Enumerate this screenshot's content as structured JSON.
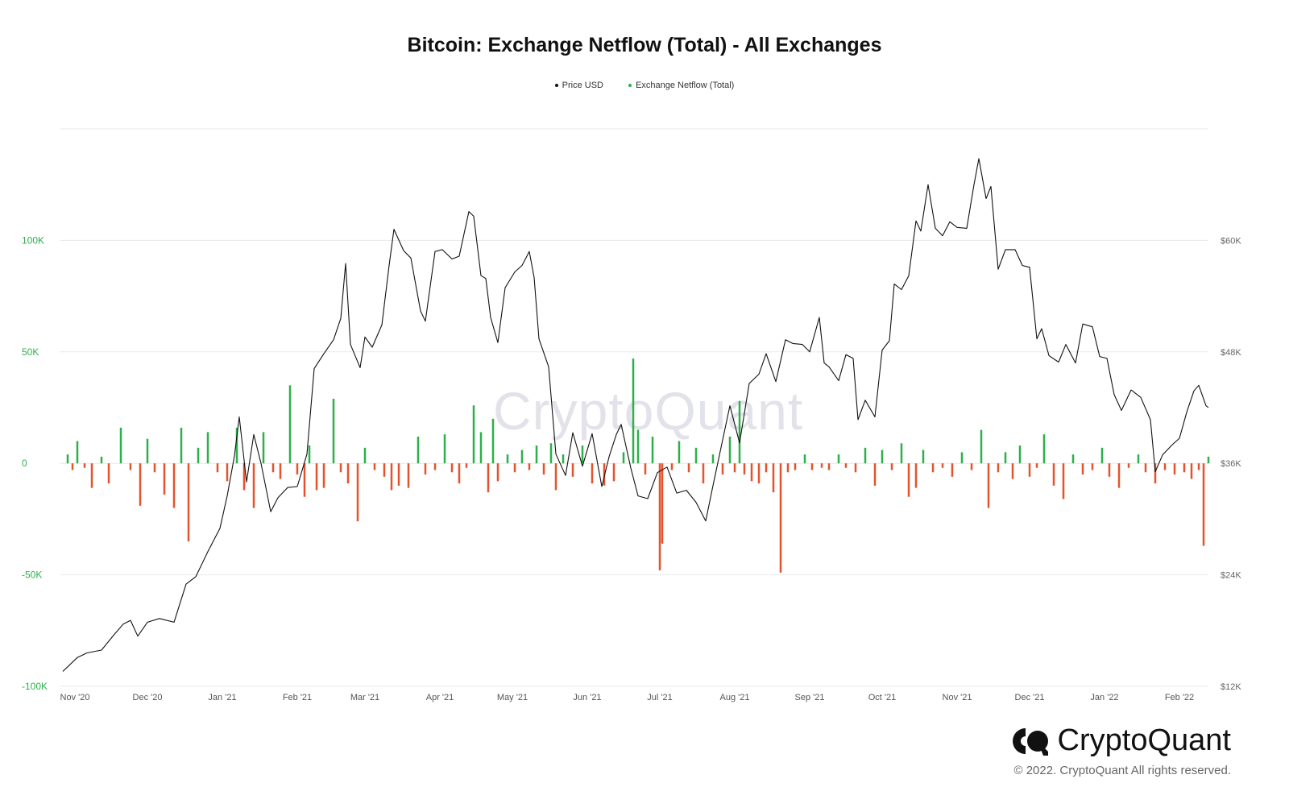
{
  "brand": {
    "name": "CryptoQuant",
    "copyright": "© 2022. CryptoQuant All rights reserved.",
    "watermark": "CryptoQuant"
  },
  "colors": {
    "price": "#111111",
    "inflow": "#2db04a",
    "outflow": "#e4532c",
    "left_axis": "#2db04a",
    "right_axis": "#666666",
    "grid": "#e8e8e8"
  },
  "chart_data": {
    "type": "bar",
    "title": "Bitcoin: Exchange Netflow (Total) - All Exchanges",
    "legend": [
      {
        "name": "Price USD",
        "color": "#111111"
      },
      {
        "name": "Exchange Netflow (Total)",
        "color": "#2db04a"
      }
    ],
    "x_ticks": [
      "Nov '20",
      "Dec '20",
      "Jan '21",
      "Feb '21",
      "Mar '21",
      "Apr '21",
      "May '21",
      "Jun '21",
      "Jul '21",
      "Aug '21",
      "Sep '21",
      "Oct '21",
      "Nov '21",
      "Dec '21",
      "Jan '22",
      "Feb '22"
    ],
    "x_range": [
      "2020-10-27",
      "2022-02-13"
    ],
    "left_axis": {
      "ticks": [
        100000,
        50000,
        0,
        -50000,
        -100000
      ],
      "labels": [
        "100K",
        "50K",
        "0",
        "-50K",
        "-100K"
      ],
      "range": [
        -100000,
        150000
      ]
    },
    "right_axis": {
      "ticks": [
        60000,
        48000,
        36000,
        24000,
        12000
      ],
      "labels": [
        "$60K",
        "$48K",
        "$36K",
        "$24K",
        "$12K"
      ],
      "range": [
        12000,
        72000
      ]
    },
    "price_series": {
      "name": "Price USD",
      "points": [
        [
          "2020-10-27",
          13600
        ],
        [
          "2020-11-02",
          15100
        ],
        [
          "2020-11-06",
          15600
        ],
        [
          "2020-11-12",
          15900
        ],
        [
          "2020-11-17",
          17500
        ],
        [
          "2020-11-21",
          18700
        ],
        [
          "2020-11-24",
          19100
        ],
        [
          "2020-11-27",
          17400
        ],
        [
          "2020-12-01",
          18900
        ],
        [
          "2020-12-06",
          19300
        ],
        [
          "2020-12-12",
          18900
        ],
        [
          "2020-12-17",
          23000
        ],
        [
          "2020-12-21",
          23800
        ],
        [
          "2020-12-26",
          26500
        ],
        [
          "2020-12-31",
          29000
        ],
        [
          "2021-01-03",
          32500
        ],
        [
          "2021-01-06",
          36800
        ],
        [
          "2021-01-08",
          41000
        ],
        [
          "2021-01-11",
          34000
        ],
        [
          "2021-01-14",
          39100
        ],
        [
          "2021-01-17",
          36000
        ],
        [
          "2021-01-21",
          30800
        ],
        [
          "2021-01-24",
          32300
        ],
        [
          "2021-01-28",
          33400
        ],
        [
          "2021-02-01",
          33500
        ],
        [
          "2021-02-05",
          37000
        ],
        [
          "2021-02-08",
          46200
        ],
        [
          "2021-02-12",
          47800
        ],
        [
          "2021-02-16",
          49300
        ],
        [
          "2021-02-19",
          51600
        ],
        [
          "2021-02-21",
          57500
        ],
        [
          "2021-02-23",
          48800
        ],
        [
          "2021-02-27",
          46300
        ],
        [
          "2021-03-01",
          49600
        ],
        [
          "2021-03-04",
          48500
        ],
        [
          "2021-03-08",
          50900
        ],
        [
          "2021-03-11",
          57300
        ],
        [
          "2021-03-13",
          61200
        ],
        [
          "2021-03-17",
          58900
        ],
        [
          "2021-03-20",
          58100
        ],
        [
          "2021-03-24",
          52400
        ],
        [
          "2021-03-26",
          51300
        ],
        [
          "2021-03-30",
          58800
        ],
        [
          "2021-04-02",
          59000
        ],
        [
          "2021-04-06",
          58000
        ],
        [
          "2021-04-09",
          58300
        ],
        [
          "2021-04-13",
          63100
        ],
        [
          "2021-04-15",
          62600
        ],
        [
          "2021-04-18",
          56200
        ],
        [
          "2021-04-20",
          55900
        ],
        [
          "2021-04-22",
          51700
        ],
        [
          "2021-04-25",
          49000
        ],
        [
          "2021-04-28",
          54900
        ],
        [
          "2021-05-02",
          56600
        ],
        [
          "2021-05-05",
          57300
        ],
        [
          "2021-05-08",
          58800
        ],
        [
          "2021-05-10",
          56000
        ],
        [
          "2021-05-12",
          49400
        ],
        [
          "2021-05-16",
          46400
        ],
        [
          "2021-05-19",
          37000
        ],
        [
          "2021-05-23",
          34700
        ],
        [
          "2021-05-26",
          39300
        ],
        [
          "2021-05-30",
          35700
        ],
        [
          "2021-06-03",
          39200
        ],
        [
          "2021-06-07",
          33500
        ],
        [
          "2021-06-10",
          36700
        ],
        [
          "2021-06-13",
          39100
        ],
        [
          "2021-06-15",
          40200
        ],
        [
          "2021-06-19",
          35500
        ],
        [
          "2021-06-22",
          32500
        ],
        [
          "2021-06-26",
          32200
        ],
        [
          "2021-06-30",
          35000
        ],
        [
          "2021-07-04",
          35600
        ],
        [
          "2021-07-08",
          32800
        ],
        [
          "2021-07-12",
          33100
        ],
        [
          "2021-07-16",
          31800
        ],
        [
          "2021-07-20",
          29800
        ],
        [
          "2021-07-23",
          33600
        ],
        [
          "2021-07-26",
          37300
        ],
        [
          "2021-07-30",
          42200
        ],
        [
          "2021-08-03",
          38200
        ],
        [
          "2021-08-07",
          44600
        ],
        [
          "2021-08-11",
          45600
        ],
        [
          "2021-08-14",
          47800
        ],
        [
          "2021-08-18",
          44800
        ],
        [
          "2021-08-22",
          49300
        ],
        [
          "2021-08-25",
          48900
        ],
        [
          "2021-08-29",
          48800
        ],
        [
          "2021-09-01",
          48000
        ],
        [
          "2021-09-05",
          51700
        ],
        [
          "2021-09-07",
          46800
        ],
        [
          "2021-09-09",
          46400
        ],
        [
          "2021-09-13",
          44900
        ],
        [
          "2021-09-16",
          47700
        ],
        [
          "2021-09-19",
          47300
        ],
        [
          "2021-09-21",
          40700
        ],
        [
          "2021-09-24",
          42800
        ],
        [
          "2021-09-28",
          41000
        ],
        [
          "2021-10-01",
          48200
        ],
        [
          "2021-10-04",
          49200
        ],
        [
          "2021-10-06",
          55300
        ],
        [
          "2021-10-09",
          54700
        ],
        [
          "2021-10-12",
          56200
        ],
        [
          "2021-10-15",
          62100
        ],
        [
          "2021-10-17",
          61000
        ],
        [
          "2021-10-20",
          66000
        ],
        [
          "2021-10-23",
          61300
        ],
        [
          "2021-10-26",
          60500
        ],
        [
          "2021-10-29",
          62000
        ],
        [
          "2021-11-01",
          61400
        ],
        [
          "2021-11-05",
          61300
        ],
        [
          "2021-11-08",
          66000
        ],
        [
          "2021-11-10",
          68800
        ],
        [
          "2021-11-13",
          64500
        ],
        [
          "2021-11-15",
          65800
        ],
        [
          "2021-11-18",
          56900
        ],
        [
          "2021-11-21",
          59000
        ],
        [
          "2021-11-25",
          59000
        ],
        [
          "2021-11-28",
          57300
        ],
        [
          "2021-12-01",
          57100
        ],
        [
          "2021-12-04",
          49400
        ],
        [
          "2021-12-06",
          50500
        ],
        [
          "2021-12-09",
          47600
        ],
        [
          "2021-12-13",
          46900
        ],
        [
          "2021-12-16",
          48800
        ],
        [
          "2021-12-20",
          46800
        ],
        [
          "2021-12-23",
          51000
        ],
        [
          "2021-12-27",
          50700
        ],
        [
          "2021-12-30",
          47500
        ],
        [
          "2022-01-02",
          47300
        ],
        [
          "2022-01-05",
          43400
        ],
        [
          "2022-01-08",
          41700
        ],
        [
          "2022-01-12",
          43900
        ],
        [
          "2022-01-16",
          43100
        ],
        [
          "2022-01-20",
          40700
        ],
        [
          "2022-01-22",
          35100
        ],
        [
          "2022-01-25",
          36900
        ],
        [
          "2022-01-29",
          38000
        ],
        [
          "2022-02-01",
          38700
        ],
        [
          "2022-02-04",
          41500
        ],
        [
          "2022-02-07",
          43800
        ],
        [
          "2022-02-09",
          44400
        ],
        [
          "2022-02-12",
          42200
        ],
        [
          "2022-02-13",
          42000
        ]
      ]
    },
    "netflow_series": {
      "name": "Exchange Netflow (Total)",
      "values": [
        [
          "2020-10-29",
          4000
        ],
        [
          "2020-10-31",
          -3000
        ],
        [
          "2020-11-02",
          10000
        ],
        [
          "2020-11-05",
          -2000
        ],
        [
          "2020-11-08",
          -11000
        ],
        [
          "2020-11-12",
          3000
        ],
        [
          "2020-11-15",
          -9000
        ],
        [
          "2020-11-20",
          16000
        ],
        [
          "2020-11-24",
          -3000
        ],
        [
          "2020-11-28",
          -19000
        ],
        [
          "2020-12-01",
          11000
        ],
        [
          "2020-12-04",
          -4000
        ],
        [
          "2020-12-08",
          -14000
        ],
        [
          "2020-12-12",
          -20000
        ],
        [
          "2020-12-15",
          16000
        ],
        [
          "2020-12-18",
          -35000
        ],
        [
          "2020-12-22",
          7000
        ],
        [
          "2020-12-26",
          14000
        ],
        [
          "2020-12-30",
          -4000
        ],
        [
          "2021-01-03",
          -8000
        ],
        [
          "2021-01-07",
          16000
        ],
        [
          "2021-01-10",
          -12000
        ],
        [
          "2021-01-14",
          -20000
        ],
        [
          "2021-01-18",
          14000
        ],
        [
          "2021-01-22",
          -4000
        ],
        [
          "2021-01-25",
          -7000
        ],
        [
          "2021-01-29",
          35000
        ],
        [
          "2021-02-01",
          -5000
        ],
        [
          "2021-02-04",
          -15000
        ],
        [
          "2021-02-06",
          8000
        ],
        [
          "2021-02-09",
          -12000
        ],
        [
          "2021-02-12",
          -11000
        ],
        [
          "2021-02-16",
          29000
        ],
        [
          "2021-02-19",
          -4000
        ],
        [
          "2021-02-22",
          -9000
        ],
        [
          "2021-02-26",
          -26000
        ],
        [
          "2021-03-01",
          7000
        ],
        [
          "2021-03-05",
          -3000
        ],
        [
          "2021-03-09",
          -6000
        ],
        [
          "2021-03-12",
          -12000
        ],
        [
          "2021-03-15",
          -10000
        ],
        [
          "2021-03-19",
          -11000
        ],
        [
          "2021-03-23",
          12000
        ],
        [
          "2021-03-26",
          -5000
        ],
        [
          "2021-03-30",
          -3000
        ],
        [
          "2021-04-03",
          13000
        ],
        [
          "2021-04-06",
          -4000
        ],
        [
          "2021-04-09",
          -9000
        ],
        [
          "2021-04-12",
          -2000
        ],
        [
          "2021-04-15",
          26000
        ],
        [
          "2021-04-18",
          14000
        ],
        [
          "2021-04-21",
          -13000
        ],
        [
          "2021-04-23",
          20000
        ],
        [
          "2021-04-25",
          -8000
        ],
        [
          "2021-04-29",
          4000
        ],
        [
          "2021-05-02",
          -4000
        ],
        [
          "2021-05-05",
          6000
        ],
        [
          "2021-05-08",
          -3000
        ],
        [
          "2021-05-11",
          8000
        ],
        [
          "2021-05-14",
          -5000
        ],
        [
          "2021-05-17",
          9000
        ],
        [
          "2021-05-19",
          -12000
        ],
        [
          "2021-05-22",
          4000
        ],
        [
          "2021-05-26",
          -6000
        ],
        [
          "2021-05-30",
          8000
        ],
        [
          "2021-06-03",
          -9000
        ],
        [
          "2021-06-08",
          -10000
        ],
        [
          "2021-06-12",
          -8000
        ],
        [
          "2021-06-16",
          5000
        ],
        [
          "2021-06-20",
          47000
        ],
        [
          "2021-06-22",
          15000
        ],
        [
          "2021-06-25",
          -5000
        ],
        [
          "2021-06-28",
          12000
        ],
        [
          "2021-07-01",
          -48000
        ],
        [
          "2021-07-02",
          -36000
        ],
        [
          "2021-07-06",
          -3000
        ],
        [
          "2021-07-09",
          10000
        ],
        [
          "2021-07-13",
          -4000
        ],
        [
          "2021-07-16",
          7000
        ],
        [
          "2021-07-19",
          -9000
        ],
        [
          "2021-07-23",
          4000
        ],
        [
          "2021-07-27",
          -5000
        ],
        [
          "2021-07-30",
          12000
        ],
        [
          "2021-08-01",
          -4000
        ],
        [
          "2021-08-03",
          28000
        ],
        [
          "2021-08-05",
          -5000
        ],
        [
          "2021-08-08",
          -8000
        ],
        [
          "2021-08-11",
          -9000
        ],
        [
          "2021-08-14",
          -4000
        ],
        [
          "2021-08-17",
          -13000
        ],
        [
          "2021-08-20",
          -49000
        ],
        [
          "2021-08-23",
          -4000
        ],
        [
          "2021-08-26",
          -3000
        ],
        [
          "2021-08-30",
          4000
        ],
        [
          "2021-09-02",
          -3000
        ],
        [
          "2021-09-06",
          -2000
        ],
        [
          "2021-09-09",
          -3000
        ],
        [
          "2021-09-13",
          4000
        ],
        [
          "2021-09-16",
          -2000
        ],
        [
          "2021-09-20",
          -4000
        ],
        [
          "2021-09-24",
          7000
        ],
        [
          "2021-09-28",
          -10000
        ],
        [
          "2021-10-01",
          6000
        ],
        [
          "2021-10-05",
          -3000
        ],
        [
          "2021-10-09",
          9000
        ],
        [
          "2021-10-12",
          -15000
        ],
        [
          "2021-10-15",
          -11000
        ],
        [
          "2021-10-18",
          6000
        ],
        [
          "2021-10-22",
          -4000
        ],
        [
          "2021-10-26",
          -2000
        ],
        [
          "2021-10-30",
          -6000
        ],
        [
          "2021-11-03",
          5000
        ],
        [
          "2021-11-07",
          -3000
        ],
        [
          "2021-11-11",
          15000
        ],
        [
          "2021-11-14",
          -20000
        ],
        [
          "2021-11-18",
          -4000
        ],
        [
          "2021-11-21",
          5000
        ],
        [
          "2021-11-24",
          -7000
        ],
        [
          "2021-11-27",
          8000
        ],
        [
          "2021-12-01",
          -6000
        ],
        [
          "2021-12-04",
          -2000
        ],
        [
          "2021-12-07",
          13000
        ],
        [
          "2021-12-11",
          -10000
        ],
        [
          "2021-12-15",
          -16000
        ],
        [
          "2021-12-19",
          4000
        ],
        [
          "2021-12-23",
          -5000
        ],
        [
          "2021-12-27",
          -3000
        ],
        [
          "2021-12-31",
          7000
        ],
        [
          "2022-01-03",
          -6000
        ],
        [
          "2022-01-07",
          -11000
        ],
        [
          "2022-01-11",
          -2000
        ],
        [
          "2022-01-15",
          4000
        ],
        [
          "2022-01-18",
          -4000
        ],
        [
          "2022-01-22",
          -9000
        ],
        [
          "2022-01-26",
          -3000
        ],
        [
          "2022-01-30",
          -5000
        ],
        [
          "2022-02-03",
          -4000
        ],
        [
          "2022-02-06",
          -7000
        ],
        [
          "2022-02-09",
          -3000
        ],
        [
          "2022-02-11",
          -37000
        ],
        [
          "2022-02-13",
          3000
        ]
      ]
    },
    "grid": true,
    "legend_position": "top-center"
  }
}
